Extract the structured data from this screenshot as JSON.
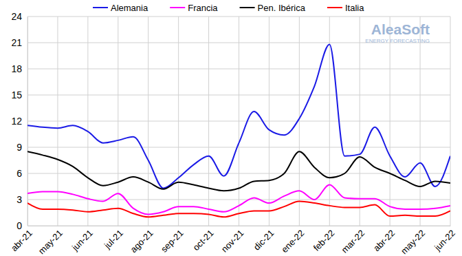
{
  "chart_data": {
    "type": "line",
    "annotations": [
      "AleaSoft",
      "ENERGY FORECASTING"
    ],
    "categories": [
      "abr-21",
      null,
      "may-21",
      null,
      "jun-21",
      null,
      "jul-21",
      null,
      "ago-21",
      null,
      "sep-21",
      null,
      "oct-21",
      null,
      "nov-21",
      null,
      "dic-21",
      null,
      "ene-22",
      null,
      "feb-22",
      null,
      "mar-22",
      null,
      "abr-22",
      null,
      "may-22",
      null,
      "jun-22"
    ],
    "series": [
      {
        "name": "Alemania",
        "color": "#1a1ae6",
        "values": [
          11.5,
          11.3,
          11.2,
          11.5,
          10.8,
          9.5,
          9.8,
          10.2,
          7.5,
          4.3,
          5.5,
          7.0,
          8.0,
          5.7,
          9.5,
          13.1,
          11.0,
          10.4,
          12.3,
          16.0,
          20.8,
          8.0,
          8.2,
          11.3,
          8.0,
          5.6,
          7.2,
          4.5,
          8.0
        ]
      },
      {
        "name": "Francia",
        "color": "#ff00ff",
        "values": [
          3.7,
          3.9,
          3.9,
          3.6,
          3.1,
          2.8,
          3.7,
          2.0,
          1.3,
          1.6,
          2.2,
          2.2,
          1.9,
          1.6,
          2.3,
          3.2,
          2.6,
          3.4,
          4.0,
          3.0,
          4.7,
          3.2,
          3.1,
          3.1,
          2.2,
          1.9,
          1.9,
          2.0,
          2.3
        ]
      },
      {
        "name": "Pen. Ibérica",
        "color": "#000000",
        "values": [
          8.5,
          8.1,
          7.6,
          6.8,
          5.5,
          4.6,
          5.0,
          5.6,
          5.0,
          4.2,
          5.0,
          4.7,
          4.3,
          4.0,
          4.3,
          5.1,
          5.2,
          6.0,
          8.5,
          6.7,
          5.5,
          6.0,
          7.9,
          6.7,
          6.0,
          5.2,
          4.5,
          5.1,
          4.9
        ]
      },
      {
        "name": "Italia",
        "color": "#ff0000",
        "values": [
          2.6,
          1.9,
          1.9,
          1.8,
          1.6,
          1.8,
          2.0,
          1.4,
          1.0,
          1.2,
          1.4,
          1.4,
          1.3,
          1.0,
          1.4,
          1.7,
          1.7,
          2.2,
          2.8,
          2.6,
          2.3,
          2.1,
          2.1,
          2.4,
          1.1,
          1.2,
          1.1,
          1.1,
          1.7
        ]
      }
    ],
    "ylim": [
      0,
      24
    ],
    "yticks": [
      0,
      3,
      6,
      9,
      12,
      15,
      18,
      21,
      24
    ],
    "grid": true,
    "legend": "top"
  }
}
